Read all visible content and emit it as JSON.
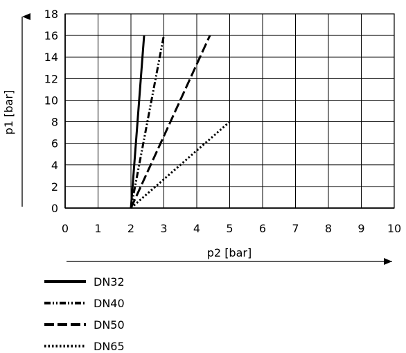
{
  "chart_data": {
    "type": "line",
    "title": "",
    "xlabel": "p2 [bar]",
    "ylabel": "p1 [bar]",
    "xlim": [
      0,
      10
    ],
    "ylim": [
      0,
      18
    ],
    "x_ticks": [
      "0",
      "1",
      "2",
      "3",
      "4",
      "5",
      "6",
      "7",
      "8",
      "9",
      "10"
    ],
    "y_ticks": [
      "0",
      "2",
      "4",
      "6",
      "8",
      "10",
      "12",
      "14",
      "16",
      "18"
    ],
    "grid": true,
    "legend_position": "bottom-left",
    "series": [
      {
        "name": "DN32",
        "style": "solid",
        "points": [
          [
            2.0,
            0
          ],
          [
            2.4,
            16
          ]
        ]
      },
      {
        "name": "DN40",
        "style": "dash-dot-dot",
        "points": [
          [
            2.0,
            0
          ],
          [
            3.0,
            16
          ]
        ]
      },
      {
        "name": "DN50",
        "style": "dashed",
        "points": [
          [
            2.0,
            0
          ],
          [
            4.4,
            16
          ]
        ]
      },
      {
        "name": "DN65",
        "style": "dotted",
        "points": [
          [
            2.0,
            0
          ],
          [
            5.0,
            8
          ]
        ]
      }
    ],
    "line_color": "#000000",
    "grid_color": "#000000"
  }
}
